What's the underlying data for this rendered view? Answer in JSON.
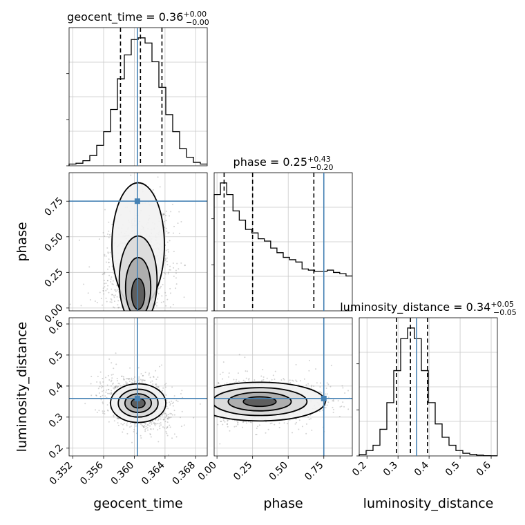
{
  "chart_data": {
    "type": "corner",
    "colors": {
      "truth": "#4682b4",
      "hist": "#000000",
      "grid": "#c8c8c8",
      "samples": "#808080"
    },
    "parameters": [
      {
        "name": "geocent_time",
        "label": "geocent_time",
        "range": [
          0.3515,
          0.3695
        ],
        "ticks": [
          0.352,
          0.356,
          0.36,
          0.364,
          0.368
        ],
        "tick_labels": [
          "0.352",
          "0.356",
          "0.360",
          "0.364",
          "0.368"
        ],
        "truth": 0.3604,
        "quantiles": [
          0.3582,
          0.3608,
          0.3636
        ],
        "title": {
          "main": "geocent_time = 0.36",
          "sup": "+0.00",
          "sub": "−0.00"
        },
        "hist_counts": [
          1,
          1.5,
          3,
          6,
          12,
          20,
          33,
          51,
          65,
          74,
          75,
          72,
          61,
          46,
          30,
          20,
          10,
          5,
          2,
          1
        ]
      },
      {
        "name": "phase",
        "label": "phase",
        "range": [
          -0.02,
          0.95
        ],
        "ticks": [
          0.0,
          0.25,
          0.5,
          0.75
        ],
        "tick_labels": [
          "0.00",
          "0.25",
          "0.50",
          "0.75"
        ],
        "truth": 0.75,
        "quantiles": [
          0.05,
          0.25,
          0.68
        ],
        "title": {
          "main": "phase = 0.25",
          "sup": "+0.43",
          "sub": "−0.20"
        },
        "hist_counts": [
          100,
          110,
          100,
          86,
          78,
          70,
          67,
          62,
          60,
          54,
          50,
          46,
          44,
          42,
          36,
          35,
          34,
          34,
          35,
          33,
          32,
          30
        ]
      },
      {
        "name": "luminosity_distance",
        "label": "luminosity_distance",
        "range": [
          0.175,
          0.62
        ],
        "ticks": [
          0.2,
          0.3,
          0.4,
          0.5,
          0.6
        ],
        "tick_labels": [
          "0.2",
          "0.3",
          "0.4",
          "0.5",
          "0.6"
        ],
        "truth": 0.36,
        "quantiles": [
          0.295,
          0.34,
          0.395
        ],
        "title": {
          "main": "luminosity_distance = 0.34",
          "sup": "+0.05",
          "sub": "−0.05"
        },
        "hist_counts": [
          0.5,
          2,
          4,
          10,
          20,
          32,
          44,
          48,
          44,
          32,
          20,
          12,
          7,
          4,
          2,
          1,
          0.6,
          0.3,
          0.1,
          0.05
        ]
      }
    ]
  }
}
